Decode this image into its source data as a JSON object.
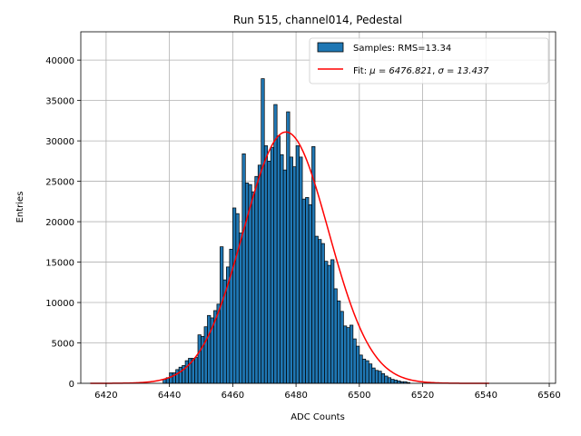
{
  "chart_data": {
    "type": "bar",
    "title": "Run 515, channel014, Pedestal",
    "xlabel": "ADC Counts",
    "ylabel": "Entries",
    "xlim": [
      6412,
      6562
    ],
    "ylim": [
      0,
      43500
    ],
    "xticks": [
      6420,
      6440,
      6460,
      6480,
      6500,
      6520,
      6540,
      6560
    ],
    "yticks": [
      0,
      5000,
      10000,
      15000,
      20000,
      25000,
      30000,
      35000,
      40000
    ],
    "grid": true,
    "legend_position": "top-right",
    "colors": {
      "bars": "#1f77b4",
      "edge": "#000000",
      "fit": "#ff0000",
      "grid": "#b0b0b0"
    },
    "histogram": {
      "name": "Samples: RMS=13.34",
      "bin_width": 1,
      "bin_starts": [
        6438,
        6439,
        6440,
        6441,
        6442,
        6443,
        6444,
        6445,
        6446,
        6447,
        6448,
        6449,
        6450,
        6451,
        6452,
        6453,
        6454,
        6455,
        6456,
        6457,
        6458,
        6459,
        6460,
        6461,
        6462,
        6463,
        6464,
        6465,
        6466,
        6467,
        6468,
        6469,
        6470,
        6471,
        6472,
        6473,
        6474,
        6475,
        6476,
        6477,
        6478,
        6479,
        6480,
        6481,
        6482,
        6483,
        6484,
        6485,
        6486,
        6487,
        6488,
        6489,
        6490,
        6491,
        6492,
        6493,
        6494,
        6495,
        6496,
        6497,
        6498,
        6499,
        6500,
        6501,
        6502,
        6503,
        6504,
        6505,
        6506,
        6507,
        6508,
        6509,
        6510,
        6511,
        6512,
        6513,
        6514,
        6515
      ],
      "values": [
        500,
        700,
        1300,
        1300,
        1700,
        2000,
        2200,
        2800,
        3100,
        3100,
        3200,
        6000,
        5800,
        7000,
        8400,
        8100,
        9000,
        9800,
        16900,
        12800,
        14400,
        16600,
        21700,
        21000,
        18600,
        28400,
        24800,
        24600,
        23700,
        25600,
        27000,
        37700,
        29400,
        27500,
        29200,
        34500,
        30600,
        28300,
        26400,
        33600,
        28000,
        26800,
        29400,
        28000,
        22800,
        23000,
        22100,
        29300,
        18200,
        17800,
        17300,
        15100,
        14600,
        15300,
        11700,
        10200,
        8900,
        7100,
        6900,
        7200,
        5500,
        4600,
        3500,
        3000,
        2800,
        2400,
        1900,
        1600,
        1500,
        1200,
        900,
        700,
        500,
        400,
        300,
        200,
        200,
        100
      ]
    },
    "fit": {
      "name": "Fit: μ = 6476.821, σ = 13.437",
      "label_prefix": "Fit: ",
      "mu_label": "μ = 6476.821",
      "sigma_label": "σ = 13.437",
      "mu": 6476.821,
      "sigma": 13.437,
      "amplitude": 31100,
      "x_range": [
        6415,
        6541
      ]
    }
  }
}
